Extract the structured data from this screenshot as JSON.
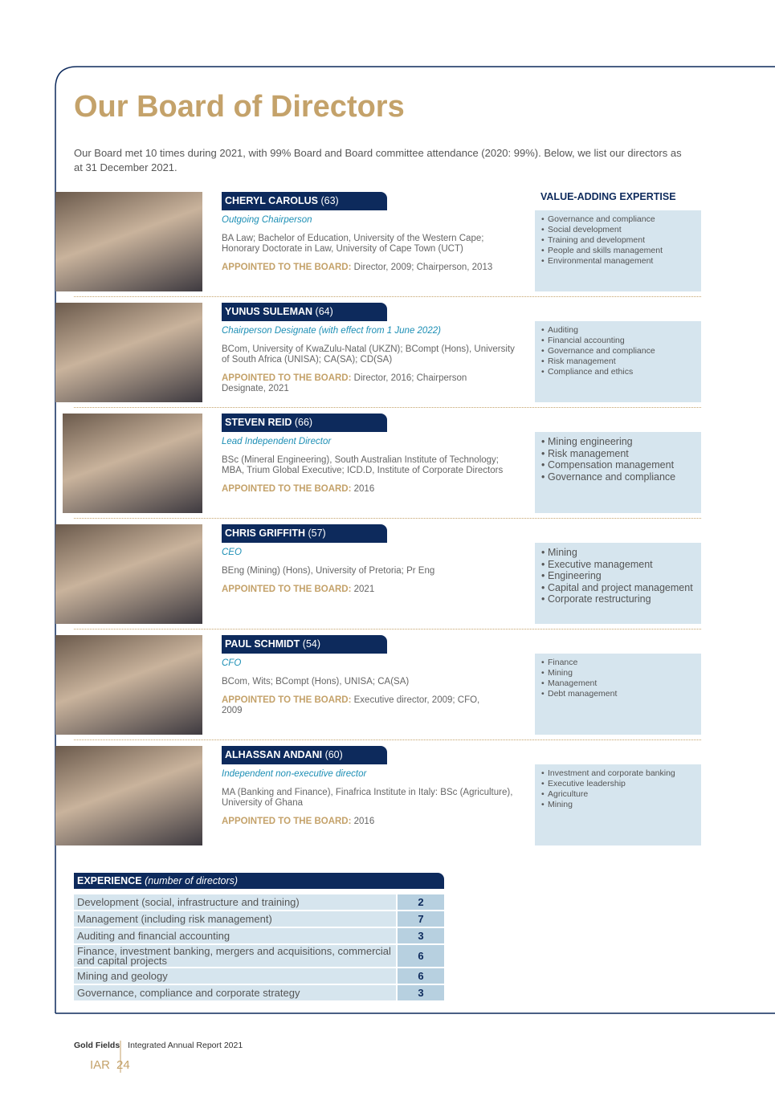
{
  "title": "Our Board of Directors",
  "intro": "Our Board met 10 times during 2021, with 99% Board and Board committee attendance (2020: 99%). Below, we list our directors as at 31 December 2021.",
  "expertise_heading": "VALUE-ADDING EXPERTISE",
  "appointed_label": "APPOINTED TO THE BOARD:",
  "directors": [
    {
      "name": "CHERYL CAROLUS",
      "age": "(63)",
      "role": "Outgoing Chairperson",
      "qualifications": "BA Law; Bachelor of Education, University of the Western Cape; Honorary Doctorate in Law, University of Cape Town (UCT)",
      "appointed": "Director, 2009; Chairperson, 2013",
      "expertise": [
        "Governance and compliance",
        "Social development",
        "Training and development",
        "People and skills management",
        "Environmental management"
      ]
    },
    {
      "name": "YUNUS SULEMAN",
      "age": "(64)",
      "role": "Chairperson Designate (with effect from 1 June 2022)",
      "qualifications": "BCom, University of KwaZulu-Natal (UKZN); BCompt (Hons), University of South Africa (UNISA); CA(SA); CD(SA)",
      "appointed": "Director, 2016; Chairperson Designate, 2021",
      "expertise": [
        "Auditing",
        "Financial accounting",
        "Governance and compliance",
        "Risk management",
        "Compliance and ethics"
      ]
    },
    {
      "name": "STEVEN REID",
      "age": "(66)",
      "role": "Lead Independent Director",
      "qualifications": "BSc (Mineral Engineering), South Australian Institute of Technology; MBA, Trium Global Executive; ICD.D, Institute of Corporate Directors",
      "appointed": "2016",
      "expertise": [
        "Mining engineering",
        "Risk management",
        "Compensation management",
        "Governance and compliance"
      ]
    },
    {
      "name": "CHRIS GRIFFITH",
      "age": "(57)",
      "role": "CEO",
      "qualifications": "BEng (Mining) (Hons), University of Pretoria; Pr Eng",
      "appointed": "2021",
      "expertise": [
        "Mining",
        "Executive management",
        "Engineering",
        "Capital and project management",
        "Corporate restructuring"
      ]
    },
    {
      "name": "PAUL SCHMIDT",
      "age": "(54)",
      "role": "CFO",
      "qualifications": "BCom, Wits; BCompt (Hons), UNISA; CA(SA)",
      "appointed": "Executive director, 2009; CFO, 2009",
      "expertise": [
        "Finance",
        "Mining",
        "Management",
        "Debt management"
      ]
    },
    {
      "name": "ALHASSAN ANDANI",
      "age": "(60)",
      "role": "Independent non-executive director",
      "qualifications": "MA (Banking and Finance), Finafrica Institute in Italy: BSc (Agriculture), University of Ghana",
      "appointed": "2016",
      "expertise": [
        "Investment and corporate banking",
        "Executive leadership",
        "Agriculture",
        "Mining"
      ]
    }
  ],
  "experience": {
    "heading": "EXPERIENCE",
    "subheading": "(number of directors)",
    "rows": [
      [
        "Development (social, infrastructure and training)",
        "2"
      ],
      [
        "Management (including risk management)",
        "7"
      ],
      [
        "Auditing and financial accounting",
        "3"
      ],
      [
        "Finance, investment banking, mergers and acquisitions, commercial and capital projects",
        "6"
      ],
      [
        "Mining and geology",
        "6"
      ],
      [
        "Governance, compliance and corporate strategy",
        "3"
      ]
    ]
  },
  "footer": {
    "company": "Gold Fields",
    "report": "Integrated Annual Report 2021",
    "iar": "IAR",
    "page": "24"
  }
}
